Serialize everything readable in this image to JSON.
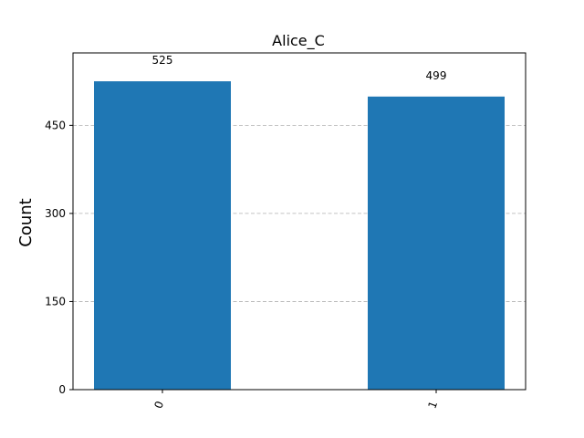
{
  "chart_data": {
    "type": "bar",
    "title": "Alice_C",
    "xlabel": "",
    "ylabel": "Count",
    "categories": [
      "0",
      "1"
    ],
    "values": [
      525,
      499
    ],
    "data_labels": [
      "525",
      "499"
    ],
    "y_ticks": [
      0,
      150,
      300,
      450
    ],
    "y_tick_labels": [
      "0",
      "150",
      "300",
      "450"
    ],
    "ylim": [
      0,
      573.3
    ],
    "grid": true,
    "x_tick_rotation": "70°",
    "bar_color": "#1f77b4"
  }
}
